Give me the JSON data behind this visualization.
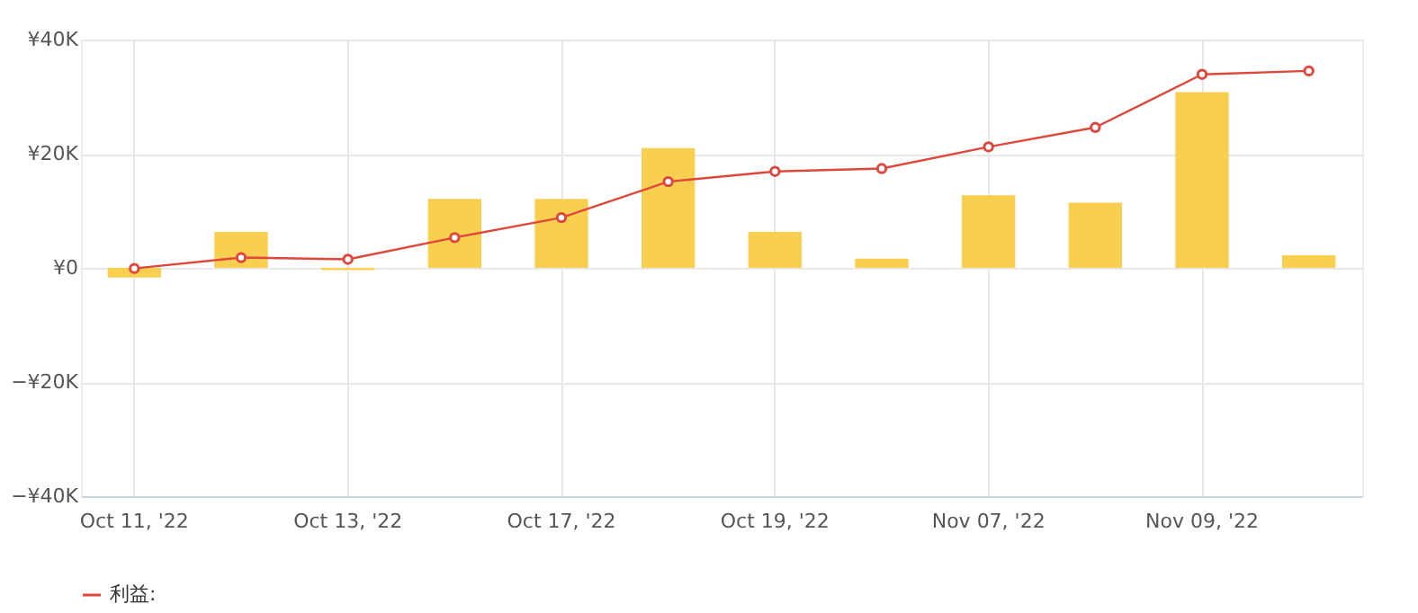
{
  "chart_data": {
    "type": "bar",
    "categories": [
      "Oct 11, '22",
      null,
      "Oct 13, '22",
      null,
      "Oct 17, '22",
      null,
      "Oct 19, '22",
      null,
      "Nov 07, '22",
      null,
      "Nov 09, '22",
      null
    ],
    "series": [
      {
        "color": "#f8cf4f",
        "values": [
          -1700,
          6300,
          -400,
          12100,
          12100,
          21000,
          6300,
          1600,
          12700,
          11400,
          30800,
          2200
        ]
      },
      {
        "type": "line",
        "name": "利益:",
        "color": "#e0473c",
        "marker": "circle",
        "values": [
          -100,
          1800,
          1500,
          5300,
          8800,
          15100,
          16900,
          17400,
          21200,
          24600,
          33900,
          34500
        ]
      }
    ],
    "ylim": [
      -40000,
      40000
    ],
    "yticks": [
      {
        "value": -40000,
        "label": "−¥40K"
      },
      {
        "value": -20000,
        "label": "−¥20K"
      },
      {
        "value": 0,
        "label": "¥0"
      },
      {
        "value": 20000,
        "label": "¥20K"
      },
      {
        "value": 40000,
        "label": "¥40K"
      }
    ],
    "grid": true,
    "legend": "bottom"
  }
}
